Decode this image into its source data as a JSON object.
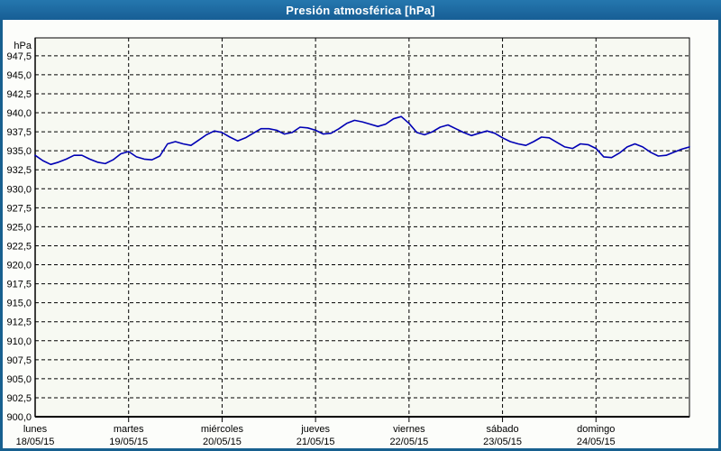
{
  "window": {
    "title": "Presión atmosférica [hPa]"
  },
  "colors": {
    "titlebar_gradient_top": "#2577AE",
    "titlebar_gradient_bottom": "#175E95",
    "titlebar_bottom_line": "#0D4A73",
    "window_border": "#17608F",
    "page_background": "#FCFDFA",
    "plot_background": "#F7F9F2",
    "grid_color": "#000000",
    "axis_color": "#000000",
    "line_color": "#0000B4",
    "text_color": "#000000"
  },
  "chart_data": {
    "type": "line",
    "title": "Presión atmosférica [hPa]",
    "unit_label": "hPa",
    "ylabel": "hPa",
    "xlabel": "",
    "ylim": [
      900,
      950
    ],
    "ytick_step": 2.5,
    "ytick_labels": [
      "947,5",
      "945,0",
      "942,5",
      "940,0",
      "937,5",
      "935,0",
      "932,5",
      "930,0",
      "927,5",
      "925,0",
      "922,5",
      "920,0",
      "917,5",
      "915,0",
      "912,5",
      "910,0",
      "907,5",
      "905,0",
      "902,5",
      "900,0"
    ],
    "grid": true,
    "legend_position": "none",
    "x_days": [
      {
        "name": "lunes",
        "date": "18/05/15"
      },
      {
        "name": "martes",
        "date": "19/05/15"
      },
      {
        "name": "miércoles",
        "date": "20/05/15"
      },
      {
        "name": "jueves",
        "date": "21/05/15"
      },
      {
        "name": "viernes",
        "date": "22/05/15"
      },
      {
        "name": "sábado",
        "date": "23/05/15"
      },
      {
        "name": "domingo",
        "date": "24/05/15"
      }
    ],
    "x_total_hours": 168,
    "series": [
      {
        "name": "Presión atmosférica",
        "color": "#0000B4",
        "sample_interval_hours": 2,
        "values": [
          934.4,
          933.7,
          933.2,
          933.5,
          933.9,
          934.4,
          934.4,
          933.9,
          933.5,
          933.3,
          933.8,
          934.6,
          934.9,
          934.2,
          933.9,
          933.8,
          934.3,
          935.9,
          936.2,
          935.9,
          935.7,
          936.4,
          937.1,
          937.6,
          937.4,
          936.8,
          936.3,
          936.7,
          937.3,
          937.9,
          937.9,
          937.7,
          937.2,
          937.4,
          938.1,
          938.0,
          937.7,
          937.2,
          937.3,
          937.9,
          938.6,
          939.0,
          938.8,
          938.5,
          938.2,
          938.5,
          939.2,
          939.5,
          938.6,
          937.4,
          937.1,
          937.5,
          938.1,
          938.4,
          937.9,
          937.4,
          937.0,
          937.3,
          937.6,
          937.3,
          936.7,
          936.2,
          935.9,
          935.7,
          936.2,
          936.8,
          936.7,
          936.1,
          935.5,
          935.3,
          935.9,
          935.8,
          935.3,
          934.2,
          934.1,
          934.7,
          935.5,
          935.9,
          935.5,
          934.8,
          934.3,
          934.4,
          934.8,
          935.2,
          935.5
        ]
      }
    ]
  }
}
